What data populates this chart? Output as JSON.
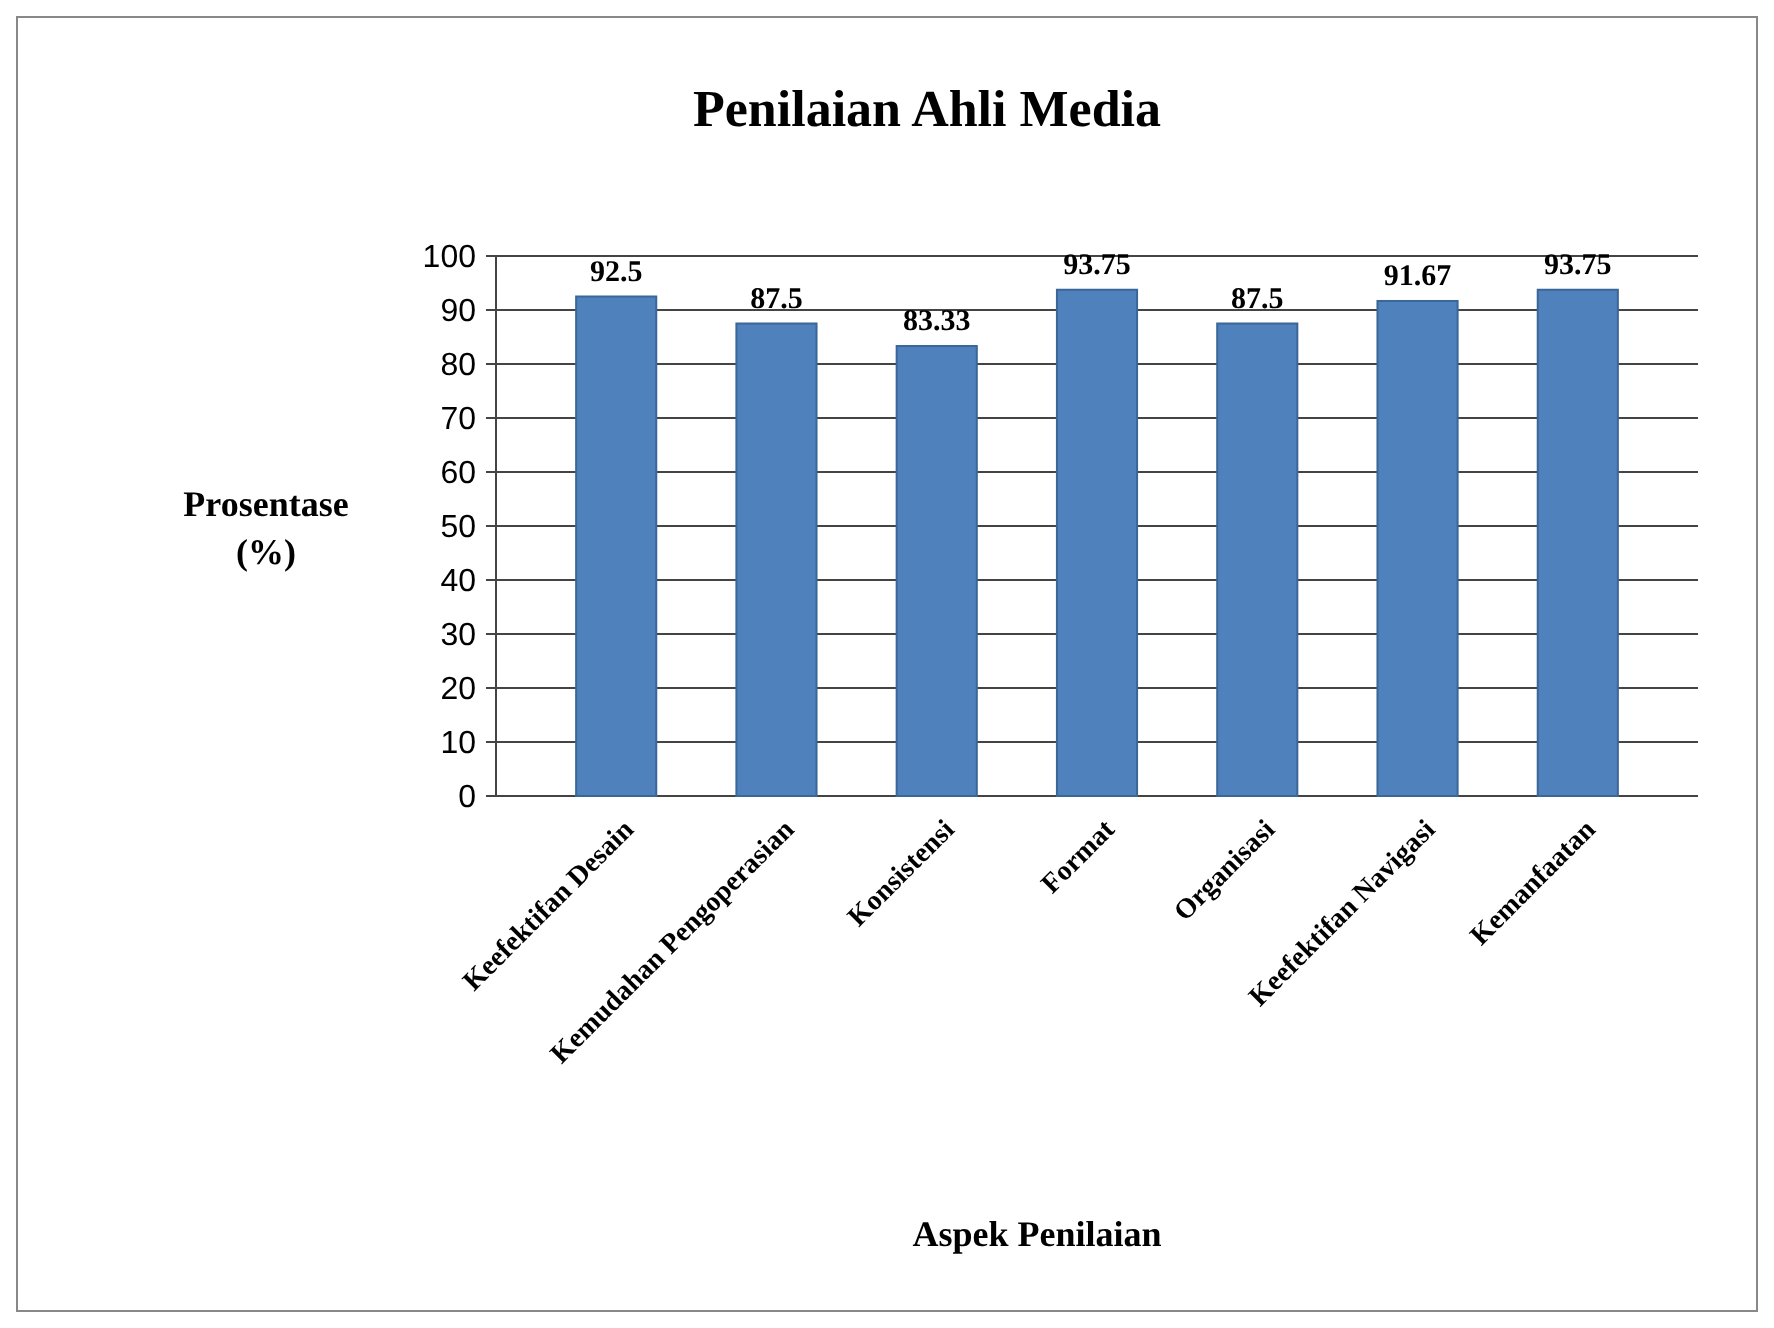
{
  "chart_data": {
    "type": "bar",
    "title": "Penilaian Ahli Media",
    "xlabel": "Aspek Penilaian",
    "ylabel": "Prosentase (%)",
    "categories": [
      "Keefektifan Desain",
      "Kemudahan Pengoperasian",
      "Konsistensi",
      "Format",
      "Organisasi",
      "Keefektifan Navigasi",
      "Kemanfaatan"
    ],
    "values": [
      92.5,
      87.5,
      83.33,
      93.75,
      87.5,
      91.67,
      93.75
    ],
    "color": "#4f81bd",
    "ylim": [
      0,
      100
    ],
    "yticks": [
      0,
      10,
      20,
      30,
      40,
      50,
      60,
      70,
      80,
      90,
      100
    ],
    "grid": "y",
    "data_labels": true
  }
}
